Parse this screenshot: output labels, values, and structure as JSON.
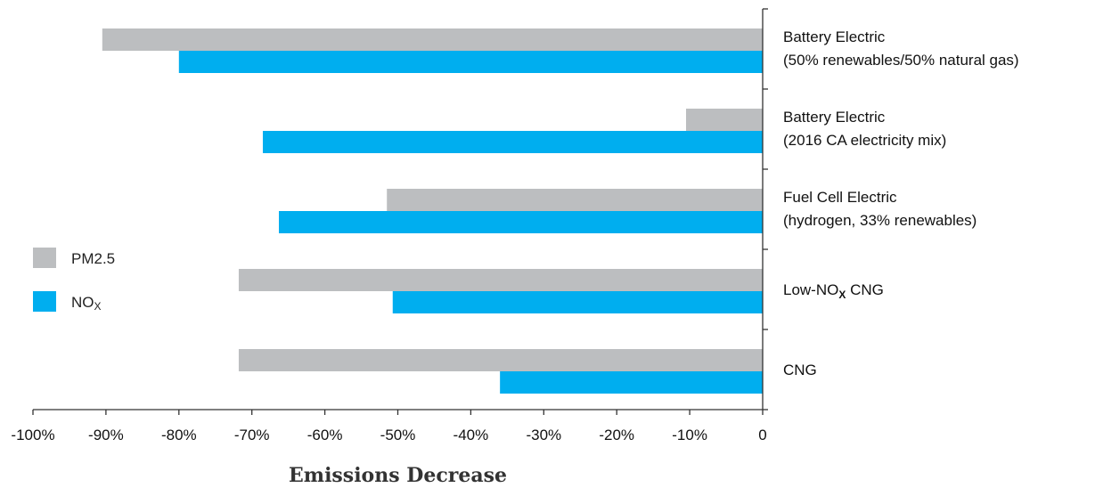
{
  "chart_data": {
    "type": "bar",
    "orientation": "horizontal",
    "title": "",
    "xlabel": "Emissions Decrease",
    "ylabel": "",
    "xlim": [
      -100,
      0
    ],
    "x_ticks": [
      -100,
      -90,
      -80,
      -70,
      -60,
      -50,
      -40,
      -30,
      -20,
      -10,
      0
    ],
    "x_tick_labels": [
      "-100%",
      "-90%",
      "-80%",
      "-70%",
      "-60%",
      "-50%",
      "-40%",
      "-30%",
      "-20%",
      "-10%",
      "0"
    ],
    "grid": false,
    "legend_position": "left",
    "categories": [
      {
        "line1": "Battery Electric",
        "line2": "(50% renewables/50% natural gas)"
      },
      {
        "line1": "Battery Electric",
        "line2": "(2016 CA electricity mix)"
      },
      {
        "line1": "Fuel Cell Electric",
        "line2": "(hydrogen, 33% renewables)"
      },
      {
        "line1": "Low-NO",
        "sub": "X",
        "line1_suffix": " CNG"
      },
      {
        "line1": "CNG"
      }
    ],
    "series": [
      {
        "name": "PM2.5",
        "color": "#BCBEC0",
        "values": [
          -90.5,
          -10.5,
          -51.5,
          -71.8,
          -71.8
        ]
      },
      {
        "name": "NO",
        "name_sub": "X",
        "color": "#00AEEF",
        "values": [
          -80,
          -68.5,
          -66.3,
          -50.7,
          -36
        ]
      }
    ]
  }
}
